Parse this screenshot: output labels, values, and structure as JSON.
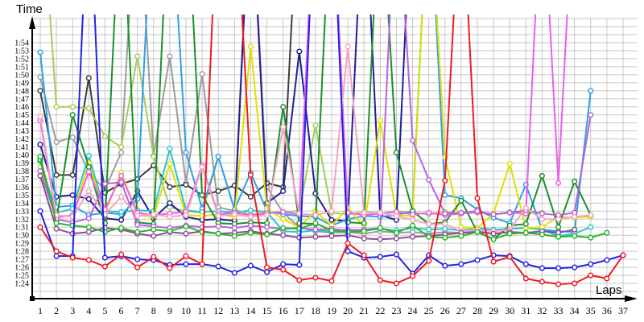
{
  "chart_data": {
    "type": "line",
    "title": "",
    "xlabel": "Laps",
    "ylabel": "Time",
    "x_ticks": [
      1,
      2,
      3,
      4,
      5,
      6,
      7,
      8,
      9,
      10,
      11,
      12,
      13,
      14,
      15,
      16,
      17,
      18,
      19,
      20,
      21,
      22,
      23,
      24,
      25,
      26,
      27,
      28,
      29,
      30,
      31,
      32,
      33,
      34,
      35,
      36,
      37
    ],
    "y_ticks": [
      "1:24",
      "1:25",
      "1:26",
      "1:27",
      "1:28",
      "1:29",
      "1:30",
      "1:31",
      "1:32",
      "1:33",
      "1:34",
      "1:35",
      "1:36",
      "1:37",
      "1:38",
      "1:39",
      "1:40",
      "1:41",
      "1:42",
      "1:43",
      "1:44",
      "1:45",
      "1:46",
      "1:47",
      "1:48",
      "1:49",
      "1:50",
      "1:51",
      "1:52",
      "1:53",
      "1:54"
    ],
    "y_min_seconds": 84,
    "y_max_seconds": 114,
    "offscale_seconds": 135,
    "grid": true,
    "legend": "none",
    "marker": "open-circle",
    "series": [
      {
        "name": "gray",
        "color": "#9c9c9c",
        "values": [
          109.7,
          101.6,
          102.2,
          97.8,
          95.7,
          100.3,
          135,
          99.9,
          112.3,
          96.5,
          110.1,
          93.5,
          93.0,
          135,
          96.0,
          92.8,
          91.0,
          90.5,
          90.3,
          90.4,
          90.2,
          90.5,
          90.3,
          90.4,
          90.2,
          90.4,
          90.3,
          90.5,
          90.2,
          90.4,
          90.3,
          90.5,
          90.4,
          null,
          null,
          null,
          null
        ]
      },
      {
        "name": "darkgray",
        "color": "#3d3d3d",
        "values": [
          108.0,
          97.5,
          97.5,
          109.6,
          95.3,
          96.4,
          97.0,
          98.7,
          96.0,
          96.3,
          95.0,
          95.5,
          96.2,
          94.8,
          96.5,
          96.0,
          135,
          null,
          null,
          null,
          null,
          null,
          null,
          null,
          null,
          null,
          null,
          null,
          null,
          null,
          null,
          null,
          null,
          null,
          null,
          null,
          null
        ]
      },
      {
        "name": "yellowgreen",
        "color": "#a5cd5a",
        "values": [
          135,
          106.0,
          106.0,
          105.8,
          102.3,
          101.0,
          112.3,
          99.8,
          93.5,
          93.0,
          92.8,
          99.8,
          93.2,
          92.6,
          92.8,
          92.9,
          93.0,
          103.7,
          92.8,
          92.6,
          92.9,
          92.7,
          93.0,
          92.8,
          92.6,
          92.9,
          92.7,
          92.8,
          92.6,
          92.9,
          92.7,
          92.8,
          null,
          null,
          null,
          null,
          null
        ]
      },
      {
        "name": "navy",
        "color": "#1f1f96",
        "values": [
          101.3,
          94.8,
          95.0,
          94.5,
          92.1,
          91.9,
          95.5,
          92.1,
          94.0,
          92.3,
          91.9,
          92.0,
          91.8,
          135,
          94.0,
          95.5,
          112.9,
          95.2,
          91.9,
          91.8,
          135,
          92.5,
          91.9,
          135,
          null,
          null,
          null,
          null,
          null,
          null,
          null,
          null,
          null,
          null,
          null,
          null,
          null
        ]
      },
      {
        "name": "skyblue",
        "color": "#2da0ea",
        "values": [
          112.8,
          93.5,
          93.7,
          92.5,
          92.8,
          92.6,
          94.5,
          135,
          135,
          100.3,
          93.3,
          99.8,
          93.2,
          97.8,
          93.0,
          92.6,
          92.4,
          92.3,
          91.2,
          92.0,
          92.4,
          92.3,
          92.5,
          93.0,
          135,
          95.0,
          94.6,
          93.2,
          92.2,
          91.5,
          96.3,
          90.7,
          90.5,
          90.4,
          108.0,
          null,
          null
        ]
      },
      {
        "name": "cyan",
        "color": "#29c5c9",
        "values": [
          99.2,
          92.8,
          93.3,
          99.9,
          93.0,
          92.9,
          93.1,
          93.0,
          100.8,
          93.1,
          92.9,
          93.0,
          92.8,
          93.1,
          92.9,
          90.5,
          90.4,
          90.6,
          90.5,
          90.7,
          90.6,
          90.8,
          90.6,
          90.9,
          90.7,
          90.8,
          90.6,
          90.9,
          90.7,
          90.8,
          90.9,
          90.7,
          89.9,
          90.2,
          91.0,
          null,
          null
        ]
      },
      {
        "name": "yellow",
        "color": "#e0e000",
        "values": [
          98.5,
          92.3,
          92.5,
          99.0,
          92.8,
          97.8,
          92.5,
          92.3,
          98.9,
          92.5,
          92.4,
          92.6,
          92.3,
          113.5,
          93.3,
          92.0,
          91.0,
          93.0,
          91.2,
          93.4,
          91.0,
          104.3,
          92.5,
          92.4,
          135,
          99.7,
          91.0,
          90.9,
          92.7,
          98.9,
          90.9,
          91.0,
          92.3,
          92.2,
          92.3,
          null,
          null
        ]
      },
      {
        "name": "darkgreen",
        "color": "#1d8f2a",
        "values": [
          99.4,
          91.8,
          105.0,
          98.5,
          91.5,
          135,
          91.6,
          91.4,
          135,
          135,
          95.0,
          91.5,
          91.4,
          91.6,
          91.5,
          106.0,
          91.5,
          91.4,
          135,
          91.6,
          91.5,
          135,
          100.3,
          93.0,
          91.4,
          91.6,
          94.3,
          90.4,
          89.5,
          91.2,
          91.4,
          97.4,
          91.0,
          96.7,
          92.5,
          null,
          null
        ]
      },
      {
        "name": "magenta",
        "color": "#ea5fea",
        "values": [
          104.3,
          92.2,
          92.5,
          97.9,
          93.2,
          97.4,
          92.8,
          92.5,
          92.7,
          92.9,
          98.7,
          92.6,
          92.8,
          92.5,
          92.7,
          92.9,
          92.6,
          135,
          135,
          92.8,
          92.5,
          92.7,
          92.9,
          92.6,
          92.8,
          92.5,
          92.7,
          92.9,
          92.6,
          92.8,
          92.7,
          135,
          96.5,
          135,
          null,
          null,
          null
        ]
      },
      {
        "name": "violet",
        "color": "#b961dd",
        "values": [
          98.0,
          92.0,
          91.6,
          92.1,
          96.4,
          96.6,
          91.3,
          91.1,
          90.9,
          91.2,
          91.0,
          91.1,
          90.9,
          91.2,
          91.0,
          90.8,
          90.9,
          90.7,
          90.8,
          90.6,
          90.7,
          90.9,
          135,
          101.8,
          96.9,
          92.7,
          92.8,
          93.0,
          92.6,
          92.8,
          93.1,
          92.7,
          92.5,
          92.8,
          105.0,
          null,
          null
        ]
      },
      {
        "name": "pink",
        "color": "#f7a3c0",
        "values": [
          104.8,
          92.5,
          92.3,
          95.5,
          92.6,
          94.8,
          92.4,
          92.6,
          92.3,
          92.5,
          98.5,
          92.4,
          92.6,
          92.3,
          92.5,
          103.5,
          92.7,
          92.5,
          93.0,
          113.5,
          92.8,
          92.8,
          92.4,
          91.9,
          91.4,
          91.4,
          90.5,
          90.7,
          90.5,
          90.7,
          93.4,
          92.0,
          92.0,
          92.3,
          92.5,
          null,
          null
        ]
      },
      {
        "name": "purple",
        "color": "#8f4a9b",
        "values": [
          97.4,
          90.8,
          90.2,
          90.4,
          90.9,
          90.7,
          90.2,
          89.9,
          90.4,
          90.2,
          90.5,
          90.2,
          90.3,
          90.5,
          90.2,
          90.0,
          89.7,
          89.8,
          89.9,
          90.0,
          89.6,
          89.5,
          89.6,
          89.8,
          89.9,
          90.1,
          90.3,
          90.4,
          90.2,
          90.4,
          90.3,
          90.5,
          90.3,
          90.7,
          null,
          null,
          null
        ]
      },
      {
        "name": "green",
        "color": "#28b428",
        "values": [
          99.8,
          91.5,
          91.2,
          91.0,
          90.4,
          90.9,
          90.4,
          90.7,
          90.5,
          91.1,
          90.4,
          90.2,
          89.9,
          90.3,
          90.1,
          90.9,
          90.8,
          91.5,
          90.6,
          90.4,
          90.5,
          90.9,
          90.3,
          91.2,
          89.8,
          89.7,
          89.9,
          90.4,
          89.5,
          90.2,
          90.3,
          90.1,
          89.8,
          89.9,
          89.7,
          90.3,
          null
        ]
      },
      {
        "name": "blue",
        "color": "#2222e2",
        "values": [
          93.0,
          87.4,
          87.4,
          135,
          87.2,
          87.4,
          87.0,
          86.9,
          86.3,
          86.4,
          86.4,
          86.1,
          85.3,
          86.2,
          85.4,
          86.4,
          86.3,
          135,
          135,
          88.0,
          87.2,
          87.3,
          87.6,
          85.2,
          87.5,
          86.2,
          86.4,
          86.9,
          87.5,
          87.4,
          86.4,
          85.9,
          85.9,
          86.0,
          86.4,
          86.9,
          87.5
        ]
      },
      {
        "name": "red",
        "color": "#ed1b24",
        "values": [
          91.0,
          88.0,
          87.2,
          86.9,
          86.1,
          87.6,
          86.0,
          87.3,
          85.9,
          87.4,
          86.4,
          135,
          135,
          97.5,
          86.0,
          85.7,
          84.4,
          84.7,
          84.3,
          89.0,
          87.5,
          84.4,
          84.0,
          84.9,
          86.8,
          96.8,
          135,
          94.6,
          86.7,
          87.3,
          84.6,
          84.2,
          83.9,
          84.0,
          85.0,
          84.6,
          87.5
        ]
      }
    ]
  }
}
